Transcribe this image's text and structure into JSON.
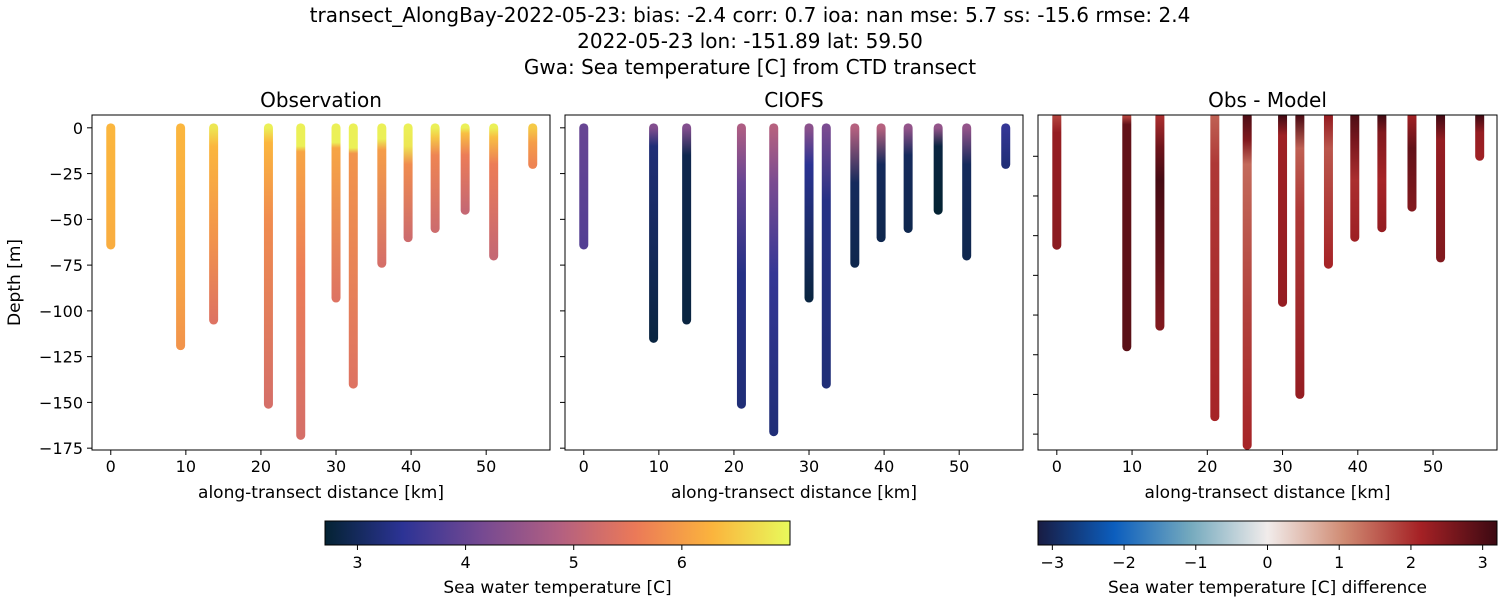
{
  "title_lines": [
    "transect_AlongBay-2022-05-23: bias: -2.4  corr: 0.7  ioa: nan  mse: 5.7  ss: -15.6  rmse: 2.4",
    "2022-05-23 lon: -151.89 lat: 59.50",
    "Gwa: Sea temperature [C] from CTD transect"
  ],
  "chart_data": [
    {
      "type": "scatter",
      "title": "Observation",
      "xlabel": "along-transect distance [km]",
      "ylabel": "Depth [m]",
      "xlim": [
        -2.5,
        58.5
      ],
      "ylim": [
        -176,
        7
      ],
      "xticks": [
        0,
        10,
        20,
        30,
        40,
        50
      ],
      "yticks": [
        0,
        -25,
        -50,
        -75,
        -100,
        -125,
        -150,
        -175
      ],
      "colormap": "thermal",
      "clim": [
        2.7,
        7.0
      ],
      "casts": [
        {
          "x": 0,
          "bottom": -64,
          "profile": [
            [
              0,
              6.3
            ],
            [
              -64,
              6.2
            ]
          ]
        },
        {
          "x": 9.3,
          "bottom": -119,
          "profile": [
            [
              0,
              6.3
            ],
            [
              -80,
              6.1
            ],
            [
              -119,
              5.9
            ]
          ]
        },
        {
          "x": 13.7,
          "bottom": -105,
          "profile": [
            [
              0,
              6.8
            ],
            [
              -10,
              6.3
            ],
            [
              -60,
              5.9
            ],
            [
              -105,
              5.4
            ]
          ]
        },
        {
          "x": 21.0,
          "bottom": -151,
          "profile": [
            [
              0,
              6.9
            ],
            [
              -8,
              6.3
            ],
            [
              -50,
              5.8
            ],
            [
              -151,
              5.3
            ]
          ]
        },
        {
          "x": 25.3,
          "bottom": -168,
          "profile": [
            [
              0,
              6.9
            ],
            [
              -10,
              6.9
            ],
            [
              -13,
              6.1
            ],
            [
              -80,
              5.6
            ],
            [
              -168,
              5.3
            ]
          ]
        },
        {
          "x": 30.0,
          "bottom": -93,
          "profile": [
            [
              0,
              6.9
            ],
            [
              -8,
              6.9
            ],
            [
              -11,
              6.1
            ],
            [
              -93,
              5.4
            ]
          ]
        },
        {
          "x": 32.3,
          "bottom": -140,
          "profile": [
            [
              0,
              6.9
            ],
            [
              -11,
              6.9
            ],
            [
              -14,
              5.9
            ],
            [
              -140,
              5.4
            ]
          ]
        },
        {
          "x": 36.1,
          "bottom": -74,
          "profile": [
            [
              0,
              6.9
            ],
            [
              -6,
              6.9
            ],
            [
              -12,
              6.0
            ],
            [
              -74,
              5.3
            ]
          ]
        },
        {
          "x": 39.6,
          "bottom": -60,
          "profile": [
            [
              0,
              6.9
            ],
            [
              -10,
              6.8
            ],
            [
              -20,
              5.8
            ],
            [
              -60,
              5.2
            ]
          ]
        },
        {
          "x": 43.2,
          "bottom": -55,
          "profile": [
            [
              0,
              6.9
            ],
            [
              -5,
              6.5
            ],
            [
              -15,
              5.7
            ],
            [
              -55,
              5.2
            ]
          ]
        },
        {
          "x": 47.2,
          "bottom": -45,
          "profile": [
            [
              0,
              6.9
            ],
            [
              -3,
              6.4
            ],
            [
              -15,
              5.6
            ],
            [
              -45,
              5.1
            ]
          ]
        },
        {
          "x": 51.0,
          "bottom": -70,
          "profile": [
            [
              0,
              6.9
            ],
            [
              -5,
              6.4
            ],
            [
              -20,
              5.6
            ],
            [
              -70,
              5.1
            ]
          ]
        },
        {
          "x": 56.2,
          "bottom": -20,
          "profile": [
            [
              0,
              6.5
            ],
            [
              -8,
              6.0
            ],
            [
              -20,
              5.7
            ]
          ]
        }
      ]
    },
    {
      "type": "scatter",
      "title": "CIOFS",
      "xlabel": "along-transect distance [km]",
      "xlim": [
        -2.5,
        58.5
      ],
      "ylim": [
        -176,
        7
      ],
      "xticks": [
        0,
        10,
        20,
        30,
        40,
        50
      ],
      "colormap": "thermal",
      "clim": [
        2.7,
        7.0
      ],
      "casts": [
        {
          "x": 0,
          "bottom": -64,
          "profile": [
            [
              0,
              4.0
            ],
            [
              -64,
              3.8
            ]
          ]
        },
        {
          "x": 9.3,
          "bottom": -115,
          "profile": [
            [
              0,
              4.3
            ],
            [
              -10,
              3.2
            ],
            [
              -115,
              2.8
            ]
          ]
        },
        {
          "x": 13.7,
          "bottom": -105,
          "profile": [
            [
              0,
              4.3
            ],
            [
              -15,
              2.9
            ],
            [
              -105,
              2.8
            ]
          ]
        },
        {
          "x": 21.0,
          "bottom": -151,
          "profile": [
            [
              0,
              4.8
            ],
            [
              -30,
              4.0
            ],
            [
              -80,
              3.3
            ],
            [
              -151,
              3.2
            ]
          ]
        },
        {
          "x": 25.3,
          "bottom": -166,
          "profile": [
            [
              0,
              4.9
            ],
            [
              -30,
              4.2
            ],
            [
              -80,
              3.5
            ],
            [
              -166,
              3.2
            ]
          ]
        },
        {
          "x": 30.0,
          "bottom": -93,
          "profile": [
            [
              0,
              4.4
            ],
            [
              -20,
              3.4
            ],
            [
              -93,
              2.8
            ]
          ]
        },
        {
          "x": 32.3,
          "bottom": -140,
          "profile": [
            [
              0,
              4.2
            ],
            [
              -40,
              3.3
            ],
            [
              -140,
              3.2
            ]
          ]
        },
        {
          "x": 36.1,
          "bottom": -74,
          "profile": [
            [
              0,
              4.9
            ],
            [
              -30,
              3.0
            ],
            [
              -74,
              2.9
            ]
          ]
        },
        {
          "x": 39.6,
          "bottom": -60,
          "profile": [
            [
              0,
              4.9
            ],
            [
              -20,
              3.0
            ],
            [
              -60,
              2.9
            ]
          ]
        },
        {
          "x": 43.2,
          "bottom": -55,
          "profile": [
            [
              0,
              4.5
            ],
            [
              -15,
              3.0
            ],
            [
              -55,
              2.9
            ]
          ]
        },
        {
          "x": 47.2,
          "bottom": -45,
          "profile": [
            [
              0,
              4.5
            ],
            [
              -10,
              2.8
            ],
            [
              -45,
              2.7
            ]
          ]
        },
        {
          "x": 51.0,
          "bottom": -70,
          "profile": [
            [
              0,
              4.5
            ],
            [
              -20,
              3.0
            ],
            [
              -70,
              2.9
            ]
          ]
        },
        {
          "x": 56.2,
          "bottom": -20,
          "profile": [
            [
              0,
              3.5
            ],
            [
              -20,
              3.2
            ]
          ]
        }
      ]
    },
    {
      "type": "scatter",
      "title": "Obs - Model",
      "xlabel": "along-transect distance [km]",
      "xlim": [
        -2.5,
        58.5
      ],
      "ylim": [
        -210,
        1
      ],
      "xticks": [
        0,
        10,
        20,
        30,
        40,
        50
      ],
      "yticks": [
        -25,
        -50,
        -75,
        -100,
        -125,
        -150,
        -175,
        -200
      ],
      "colormap": "balance",
      "clim": [
        -3.2,
        3.2
      ],
      "casts": [
        {
          "x": 0,
          "bottom": -81,
          "profile": [
            [
              0,
              1.8
            ],
            [
              -10,
              2.3
            ],
            [
              -81,
              2.4
            ]
          ]
        },
        {
          "x": 9.3,
          "bottom": -145,
          "profile": [
            [
              0,
              1.8
            ],
            [
              -5,
              2.8
            ],
            [
              -145,
              2.9
            ]
          ]
        },
        {
          "x": 13.7,
          "bottom": -132,
          "profile": [
            [
              0,
              2.0
            ],
            [
              -20,
              2.7
            ],
            [
              -40,
              3.1
            ],
            [
              -90,
              2.8
            ],
            [
              -132,
              2.5
            ]
          ]
        },
        {
          "x": 21.0,
          "bottom": -189,
          "profile": [
            [
              0,
              1.5
            ],
            [
              -30,
              1.9
            ],
            [
              -189,
              2.1
            ]
          ]
        },
        {
          "x": 25.3,
          "bottom": -207,
          "profile": [
            [
              0,
              3.0
            ],
            [
              -15,
              2.5
            ],
            [
              -30,
              1.4
            ],
            [
              -120,
              1.8
            ],
            [
              -207,
              2.1
            ]
          ]
        },
        {
          "x": 30.0,
          "bottom": -117,
          "profile": [
            [
              0,
              3.1
            ],
            [
              -12,
              2.2
            ],
            [
              -117,
              2.3
            ]
          ]
        },
        {
          "x": 32.3,
          "bottom": -175,
          "profile": [
            [
              0,
              3.0
            ],
            [
              -20,
              1.5
            ],
            [
              -60,
              1.9
            ],
            [
              -175,
              2.3
            ]
          ]
        },
        {
          "x": 36.1,
          "bottom": -93,
          "profile": [
            [
              0,
              2.3
            ],
            [
              -20,
              1.6
            ],
            [
              -93,
              2.1
            ]
          ]
        },
        {
          "x": 39.6,
          "bottom": -76,
          "profile": [
            [
              0,
              3.0
            ],
            [
              -15,
              2.6
            ],
            [
              -40,
              2.0
            ],
            [
              -76,
              2.2
            ]
          ]
        },
        {
          "x": 43.2,
          "bottom": -70,
          "profile": [
            [
              0,
              3.1
            ],
            [
              -10,
              2.5
            ],
            [
              -40,
              2.1
            ],
            [
              -70,
              2.3
            ]
          ]
        },
        {
          "x": 47.2,
          "bottom": -57,
          "profile": [
            [
              0,
              2.2
            ],
            [
              -20,
              2.8
            ],
            [
              -57,
              2.5
            ]
          ]
        },
        {
          "x": 51.0,
          "bottom": -89,
          "profile": [
            [
              0,
              3.1
            ],
            [
              -15,
              2.3
            ],
            [
              -89,
              2.5
            ]
          ]
        },
        {
          "x": 56.2,
          "bottom": -25,
          "profile": [
            [
              0,
              3.1
            ],
            [
              -10,
              2.3
            ],
            [
              -25,
              2.2
            ]
          ]
        }
      ]
    }
  ],
  "colorbars": [
    {
      "label": "Sea water temperature [C]",
      "range": [
        2.7,
        7.0
      ],
      "ticks": [
        3,
        4,
        5,
        6
      ],
      "colormap": "thermal"
    },
    {
      "label": "Sea water temperature [C] difference",
      "range": [
        -3.2,
        3.2
      ],
      "ticks": [
        -3,
        -2,
        -1,
        0,
        1,
        2,
        3
      ],
      "tick_labels": [
        "−3",
        "−2",
        "−1",
        "0",
        "1",
        "2",
        "3"
      ],
      "colormap": "balance"
    }
  ],
  "colormaps": {
    "thermal": [
      "#042333",
      "#2c3395",
      "#744992",
      "#b15f82",
      "#eb7958",
      "#fbb43d",
      "#e8fa5b"
    ],
    "balance": [
      "#181c43",
      "#0c5ebe",
      "#75aabe",
      "#f1eceb",
      "#d08b73",
      "#a52125",
      "#3c0912"
    ]
  }
}
